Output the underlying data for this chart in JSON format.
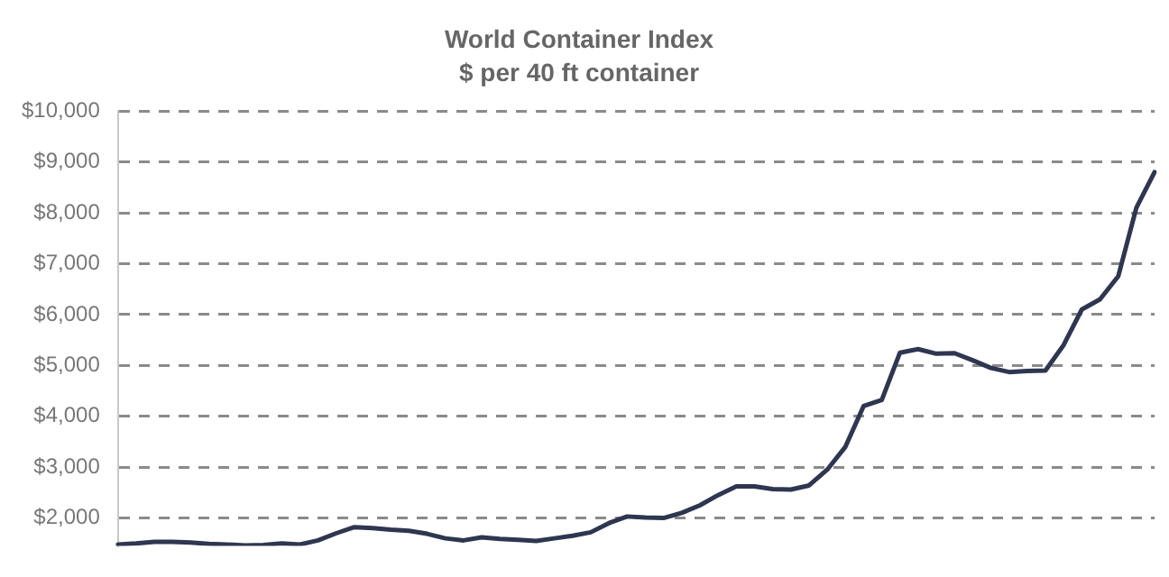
{
  "chart_data": {
    "type": "line",
    "title": "World Container Index",
    "subtitle": "$ per 40 ft container",
    "categories": [
      null,
      null,
      null,
      null,
      null,
      null,
      null,
      null,
      null,
      null,
      null,
      null,
      null,
      null,
      null,
      null,
      null,
      null,
      null,
      null,
      null,
      null,
      null,
      null,
      null,
      null,
      null,
      null,
      null,
      null,
      null,
      null,
      null,
      null,
      null,
      null,
      null,
      null,
      null,
      null,
      null,
      null,
      null,
      null,
      null,
      null,
      null,
      null,
      null,
      null,
      null,
      null,
      null,
      null,
      null,
      null,
      null,
      null
    ],
    "series": [
      {
        "color": "#2e3650",
        "values": [
          1480,
          1500,
          1530,
          1530,
          1520,
          1490,
          1480,
          1460,
          1470,
          1500,
          1480,
          1560,
          1700,
          1820,
          1800,
          1770,
          1750,
          1690,
          1600,
          1560,
          1620,
          1590,
          1570,
          1550,
          1600,
          1650,
          1720,
          1900,
          2030,
          2010,
          2000,
          2100,
          2250,
          2450,
          2620,
          2620,
          2570,
          2560,
          2640,
          2950,
          3400,
          4200,
          4320,
          5250,
          5320,
          5230,
          5240,
          5100,
          4950,
          4870,
          4890,
          4900,
          5400,
          6100,
          6300,
          6750,
          8100,
          8800
        ]
      }
    ],
    "ylim": [
      1450,
      10000
    ],
    "yticks": [
      {
        "value": 2000,
        "label": "$2,000"
      },
      {
        "value": 3000,
        "label": "$3,000"
      },
      {
        "value": 4000,
        "label": "$4,000"
      },
      {
        "value": 5000,
        "label": "$5,000"
      },
      {
        "value": 6000,
        "label": "$6,000"
      },
      {
        "value": 7000,
        "label": "$7,000"
      },
      {
        "value": 8000,
        "label": "$8,000"
      },
      {
        "value": 9000,
        "label": "$9,000"
      },
      {
        "value": 10000,
        "label": "$10,000"
      }
    ],
    "grid": "y",
    "tick_labels": "y",
    "marker": "none",
    "line_style": "solid",
    "legend": false
  }
}
